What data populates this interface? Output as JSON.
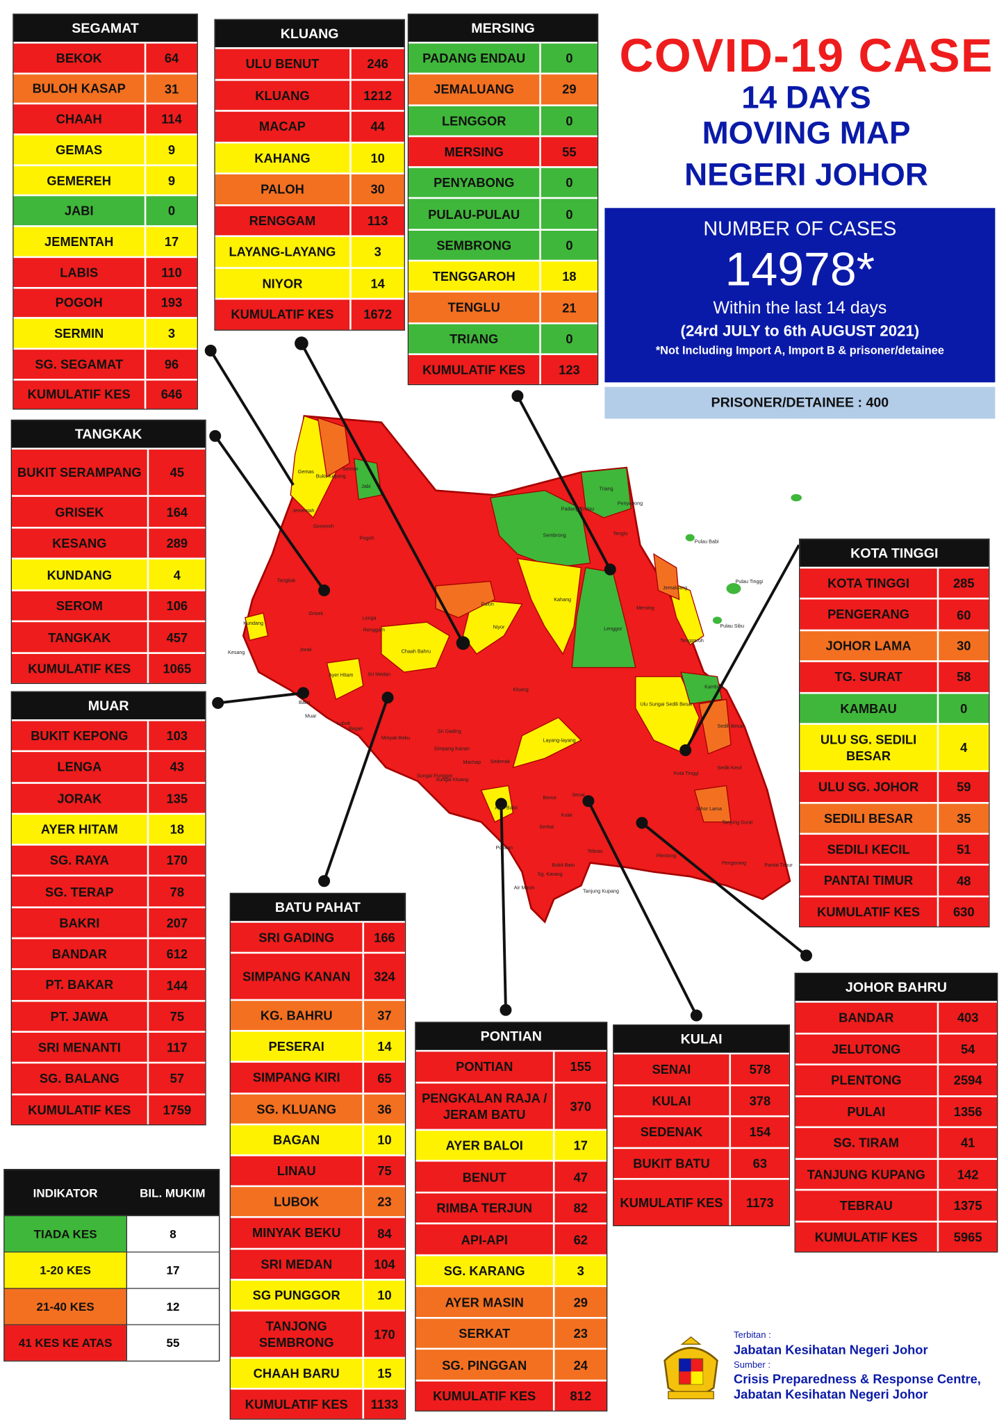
{
  "header": {
    "title_line1": "COVID-19 CASE",
    "title_line2": "14 DAYS",
    "title_line3": "MOVING MAP",
    "title_line4": "NEGERI JOHOR"
  },
  "summary": {
    "label": "NUMBER OF CASES",
    "value": "14978*",
    "period_label": "Within the last 14 days",
    "period_dates": "(24rd JULY to 6th AUGUST 2021)",
    "note": "*Not Including Import A, Import B & prisoner/detainee",
    "prisoner": "PRISONER/DETAINEE : 400"
  },
  "colors": {
    "red": "#ee1c1c",
    "orange": "#f37021",
    "yellow": "#fff200",
    "green": "#3fb73a",
    "navy": "#0a1aa8",
    "light_blue": "#b3cde9"
  },
  "tables": {
    "segamat": {
      "title": "SEGAMAT",
      "rows": [
        {
          "name": "BEKOK",
          "value": "64",
          "level": "red"
        },
        {
          "name": "BULOH KASAP",
          "value": "31",
          "level": "orange"
        },
        {
          "name": "CHAAH",
          "value": "114",
          "level": "red"
        },
        {
          "name": "GEMAS",
          "value": "9",
          "level": "yellow"
        },
        {
          "name": "GEMEREH",
          "value": "9",
          "level": "yellow"
        },
        {
          "name": "JABI",
          "value": "0",
          "level": "green"
        },
        {
          "name": "JEMENTAH",
          "value": "17",
          "level": "yellow"
        },
        {
          "name": "LABIS",
          "value": "110",
          "level": "red"
        },
        {
          "name": "POGOH",
          "value": "193",
          "level": "red"
        },
        {
          "name": "SERMIN",
          "value": "3",
          "level": "yellow"
        },
        {
          "name": "SG. SEGAMAT",
          "value": "96",
          "level": "red"
        },
        {
          "name": "KUMULATIF KES",
          "value": "646",
          "level": "red"
        }
      ]
    },
    "kluang": {
      "title": "KLUANG",
      "rows": [
        {
          "name": "ULU BENUT",
          "value": "246",
          "level": "red"
        },
        {
          "name": "KLUANG",
          "value": "1212",
          "level": "red"
        },
        {
          "name": "MACAP",
          "value": "44",
          "level": "red"
        },
        {
          "name": "KAHANG",
          "value": "10",
          "level": "yellow"
        },
        {
          "name": "PALOH",
          "value": "30",
          "level": "orange"
        },
        {
          "name": "RENGGAM",
          "value": "113",
          "level": "red"
        },
        {
          "name": "LAYANG-LAYANG",
          "value": "3",
          "level": "yellow"
        },
        {
          "name": "NIYOR",
          "value": "14",
          "level": "yellow"
        },
        {
          "name": "KUMULATIF KES",
          "value": "1672",
          "level": "red"
        }
      ]
    },
    "mersing": {
      "title": "MERSING",
      "rows": [
        {
          "name": "PADANG ENDAU",
          "value": "0",
          "level": "green"
        },
        {
          "name": "JEMALUANG",
          "value": "29",
          "level": "orange"
        },
        {
          "name": "LENGGOR",
          "value": "0",
          "level": "green"
        },
        {
          "name": "MERSING",
          "value": "55",
          "level": "red"
        },
        {
          "name": "PENYABONG",
          "value": "0",
          "level": "green"
        },
        {
          "name": "PULAU-PULAU",
          "value": "0",
          "level": "green"
        },
        {
          "name": "SEMBRONG",
          "value": "0",
          "level": "green"
        },
        {
          "name": "TENGGAROH",
          "value": "18",
          "level": "yellow"
        },
        {
          "name": "TENGLU",
          "value": "21",
          "level": "orange"
        },
        {
          "name": "TRIANG",
          "value": "0",
          "level": "green"
        },
        {
          "name": "KUMULATIF KES",
          "value": "123",
          "level": "red"
        }
      ]
    },
    "tangkak": {
      "title": "TANGKAK",
      "rows": [
        {
          "name": "BUKIT SERAMPANG",
          "value": "45",
          "level": "red"
        },
        {
          "name": "GRISEK",
          "value": "164",
          "level": "red"
        },
        {
          "name": "KESANG",
          "value": "289",
          "level": "red"
        },
        {
          "name": "KUNDANG",
          "value": "4",
          "level": "yellow"
        },
        {
          "name": "SEROM",
          "value": "106",
          "level": "red"
        },
        {
          "name": "TANGKAK",
          "value": "457",
          "level": "red"
        },
        {
          "name": "KUMULATIF KES",
          "value": "1065",
          "level": "red"
        }
      ]
    },
    "muar": {
      "title": "MUAR",
      "rows": [
        {
          "name": "BUKIT KEPONG",
          "value": "103",
          "level": "red"
        },
        {
          "name": "LENGA",
          "value": "43",
          "level": "red"
        },
        {
          "name": "JORAK",
          "value": "135",
          "level": "red"
        },
        {
          "name": "AYER HITAM",
          "value": "18",
          "level": "yellow"
        },
        {
          "name": "SG. RAYA",
          "value": "170",
          "level": "red"
        },
        {
          "name": "SG. TERAP",
          "value": "78",
          "level": "red"
        },
        {
          "name": "BAKRI",
          "value": "207",
          "level": "red"
        },
        {
          "name": "BANDAR",
          "value": "612",
          "level": "red"
        },
        {
          "name": "PT. BAKAR",
          "value": "144",
          "level": "red"
        },
        {
          "name": "PT. JAWA",
          "value": "75",
          "level": "red"
        },
        {
          "name": "SRI MENANTI",
          "value": "117",
          "level": "red"
        },
        {
          "name": "SG. BALANG",
          "value": "57",
          "level": "red"
        },
        {
          "name": "KUMULATIF KES",
          "value": "1759",
          "level": "red"
        }
      ]
    },
    "kota_tinggi": {
      "title": "KOTA TINGGI",
      "rows": [
        {
          "name": "KOTA TINGGI",
          "value": "285",
          "level": "red"
        },
        {
          "name": "PENGERANG",
          "value": "60",
          "level": "red"
        },
        {
          "name": "JOHOR LAMA",
          "value": "30",
          "level": "orange"
        },
        {
          "name": "TG. SURAT",
          "value": "58",
          "level": "red"
        },
        {
          "name": "KAMBAU",
          "value": "0",
          "level": "green"
        },
        {
          "name": "ULU SG. SEDILI BESAR",
          "value": "4",
          "level": "yellow"
        },
        {
          "name": "ULU  SG. JOHOR",
          "value": "59",
          "level": "red"
        },
        {
          "name": "SEDILI BESAR",
          "value": "35",
          "level": "orange"
        },
        {
          "name": "SEDILI KECIL",
          "value": "51",
          "level": "red"
        },
        {
          "name": "PANTAI TIMUR",
          "value": "48",
          "level": "red"
        },
        {
          "name": "KUMULATIF KES",
          "value": "630",
          "level": "red"
        }
      ]
    },
    "batu_pahat": {
      "title": "BATU PAHAT",
      "rows": [
        {
          "name": "SRI GADING",
          "value": "166",
          "level": "red"
        },
        {
          "name": "SIMPANG KANAN",
          "value": "324",
          "level": "red"
        },
        {
          "name": "KG. BAHRU",
          "value": "37",
          "level": "orange"
        },
        {
          "name": "PESERAI",
          "value": "14",
          "level": "yellow"
        },
        {
          "name": "SIMPANG KIRI",
          "value": "65",
          "level": "red"
        },
        {
          "name": "SG. KLUANG",
          "value": "36",
          "level": "orange"
        },
        {
          "name": "BAGAN",
          "value": "10",
          "level": "yellow"
        },
        {
          "name": "LINAU",
          "value": "75",
          "level": "red"
        },
        {
          "name": "LUBOK",
          "value": "23",
          "level": "orange"
        },
        {
          "name": "MINYAK BEKU",
          "value": "84",
          "level": "red"
        },
        {
          "name": "SRI MEDAN",
          "value": "104",
          "level": "red"
        },
        {
          "name": "SG PUNGGOR",
          "value": "10",
          "level": "yellow"
        },
        {
          "name": "TANJONG SEMBRONG",
          "value": "170",
          "level": "red"
        },
        {
          "name": "CHAAH BARU",
          "value": "15",
          "level": "yellow"
        },
        {
          "name": "KUMULATIF KES",
          "value": "1133",
          "level": "red"
        }
      ]
    },
    "pontian": {
      "title": "PONTIAN",
      "rows": [
        {
          "name": "PONTIAN",
          "value": "155",
          "level": "red"
        },
        {
          "name": "PENGKALAN RAJA / JERAM BATU",
          "value": "370",
          "level": "red"
        },
        {
          "name": "AYER BALOI",
          "value": "17",
          "level": "yellow"
        },
        {
          "name": "BENUT",
          "value": "47",
          "level": "red"
        },
        {
          "name": "RIMBA TERJUN",
          "value": "82",
          "level": "red"
        },
        {
          "name": "API-API",
          "value": "62",
          "level": "red"
        },
        {
          "name": "SG. KARANG",
          "value": "3",
          "level": "yellow"
        },
        {
          "name": "AYER MASIN",
          "value": "29",
          "level": "orange"
        },
        {
          "name": "SERKAT",
          "value": "23",
          "level": "orange"
        },
        {
          "name": "SG. PINGGAN",
          "value": "24",
          "level": "orange"
        },
        {
          "name": "KUMULATIF KES",
          "value": "812",
          "level": "red"
        }
      ]
    },
    "kulai": {
      "title": "KULAI",
      "rows": [
        {
          "name": "SENAI",
          "value": "578",
          "level": "red"
        },
        {
          "name": "KULAI",
          "value": "378",
          "level": "red"
        },
        {
          "name": "SEDENAK",
          "value": "154",
          "level": "red"
        },
        {
          "name": "BUKIT BATU",
          "value": "63",
          "level": "red"
        },
        {
          "name": "KUMULATIF KES",
          "value": "1173",
          "level": "red"
        }
      ]
    },
    "johor_bahru": {
      "title": "JOHOR BAHRU",
      "rows": [
        {
          "name": "BANDAR",
          "value": "403",
          "level": "red"
        },
        {
          "name": "JELUTONG",
          "value": "54",
          "level": "red"
        },
        {
          "name": "PLENTONG",
          "value": "2594",
          "level": "red"
        },
        {
          "name": "PULAI",
          "value": "1356",
          "level": "red"
        },
        {
          "name": "SG. TIRAM",
          "value": "41",
          "level": "red"
        },
        {
          "name": "TANJUNG KUPANG",
          "value": "142",
          "level": "red"
        },
        {
          "name": "TEBRAU",
          "value": "1375",
          "level": "red"
        },
        {
          "name": "KUMULATIF KES",
          "value": "5965",
          "level": "red"
        }
      ]
    }
  },
  "legend": {
    "h1": "INDIKATOR",
    "h2": "BIL. MUKIM",
    "rows": [
      {
        "name": "TIADA KES",
        "value": "8",
        "level": "green"
      },
      {
        "name": "1-20 KES",
        "value": "17",
        "level": "yellow"
      },
      {
        "name": "21-40 KES",
        "value": "12",
        "level": "orange"
      },
      {
        "name": "41 KES KE ATAS",
        "value": "55",
        "level": "red"
      }
    ]
  },
  "map_labels": [
    "Gemas",
    "Bukit Kepong",
    "Sermin",
    "Jabi",
    "Jementah",
    "Gemereh",
    "Pogoh",
    "Tangkak",
    "Grisek",
    "Sembrong",
    "Padang Endau",
    "Triang",
    "Penyabong",
    "Tenglu",
    "Pulau Babi",
    "Pulau Tinggi",
    "Pulau Sibu",
    "Jemaluang",
    "Mersing",
    "Kahang",
    "Niyor",
    "Paloh",
    "Lenggor",
    "Chaah Bahru",
    "Kundang",
    "Kesang",
    "Ayer Hitam",
    "Tenggaroh",
    "Kambau",
    "Ulu Sungai Sedili Besar",
    "Sedili Besar",
    "Kota Tinggi",
    "Layang-layang",
    "Johor Lama",
    "Tanjung Surat",
    "Pengerang",
    "Pantai Timur",
    "Sedili Kecil",
    "Lubok",
    "Bagan",
    "Minyak Beku",
    "Simpang Kanan",
    "Sri Gading",
    "Sungai Punggor",
    "Sungai Kluang",
    "Serkat",
    "Sg. Karang",
    "Air Masin",
    "Ayer Baloi",
    "Pontian",
    "Tanjung Kupang",
    "Machap",
    "Renggam",
    "Kluang",
    "Senai",
    "Kulai",
    "Tebrau",
    "Plentong",
    "Lenga",
    "Jorak",
    "Bakri",
    "Muar",
    "Benut",
    "Sedenak",
    "Bukit Batu",
    "Sri Medan"
  ],
  "footer": {
    "terbitan_label": "Terbitan :",
    "terbitan": "Jabatan Kesihatan Negeri Johor",
    "sumber_label": "Sumber :",
    "sumber1": "Crisis Preparedness & Response Centre,",
    "sumber2": "Jabatan Kesihatan Negeri Johor"
  }
}
